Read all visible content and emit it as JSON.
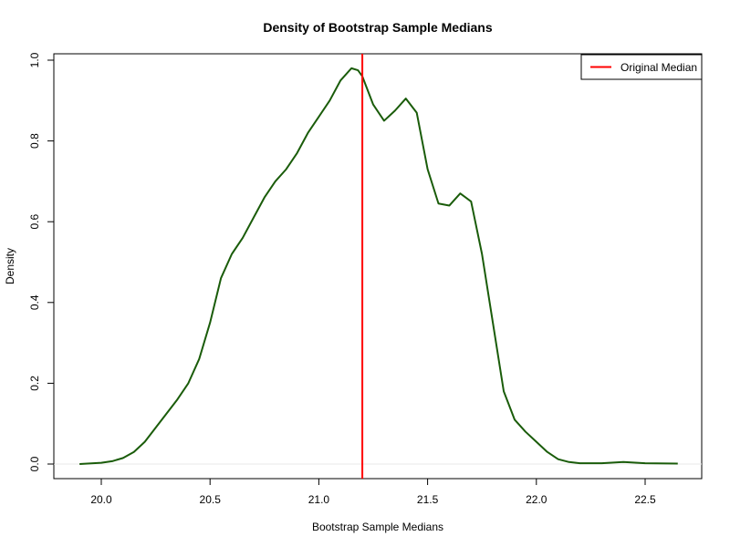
{
  "chart_data": {
    "type": "line",
    "title": "Density of Bootstrap Sample Medians",
    "xlabel": "Bootstrap Sample Medians",
    "ylabel": "Density",
    "xlim": [
      19.9,
      22.65
    ],
    "ylim": [
      0.0,
      1.0
    ],
    "xticks": [
      "20.0",
      "20.5",
      "21.0",
      "21.5",
      "22.0",
      "22.5"
    ],
    "yticks": [
      "0.0",
      "0.2",
      "0.4",
      "0.6",
      "0.8",
      "1.0"
    ],
    "grid": false,
    "legend_position": "top-right",
    "series": [
      {
        "role": "density",
        "color": "#1a5c0a",
        "x": [
          19.9,
          20.0,
          20.05,
          20.1,
          20.15,
          20.2,
          20.25,
          20.3,
          20.35,
          20.4,
          20.45,
          20.5,
          20.55,
          20.6,
          20.65,
          20.7,
          20.75,
          20.8,
          20.85,
          20.9,
          20.95,
          21.0,
          21.05,
          21.1,
          21.15,
          21.18,
          21.2,
          21.25,
          21.3,
          21.35,
          21.4,
          21.45,
          21.5,
          21.55,
          21.6,
          21.65,
          21.7,
          21.75,
          21.8,
          21.85,
          21.9,
          21.95,
          22.0,
          22.05,
          22.1,
          22.15,
          22.2,
          22.3,
          22.4,
          22.5,
          22.65
        ],
        "y": [
          0.0,
          0.003,
          0.007,
          0.015,
          0.03,
          0.055,
          0.09,
          0.125,
          0.16,
          0.2,
          0.26,
          0.35,
          0.46,
          0.52,
          0.56,
          0.61,
          0.66,
          0.7,
          0.73,
          0.77,
          0.82,
          0.86,
          0.9,
          0.95,
          0.98,
          0.975,
          0.96,
          0.89,
          0.85,
          0.875,
          0.905,
          0.87,
          0.73,
          0.645,
          0.64,
          0.67,
          0.65,
          0.52,
          0.35,
          0.18,
          0.11,
          0.08,
          0.055,
          0.03,
          0.012,
          0.005,
          0.002,
          0.002,
          0.005,
          0.002,
          0.001
        ]
      }
    ],
    "vline": {
      "label": "Original Median",
      "x": 21.2,
      "color": "#ff0000"
    }
  }
}
